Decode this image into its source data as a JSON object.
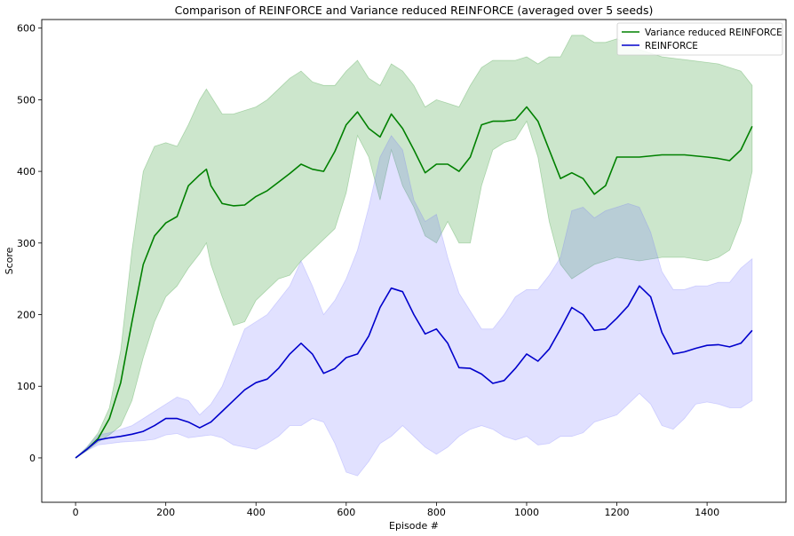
{
  "chart_data": {
    "type": "line",
    "title": "Comparison of REINFORCE and Variance reduced REINFORCE (averaged over 5 seeds)",
    "xlabel": "Episode #",
    "ylabel": "Score",
    "xlim": [
      -75,
      1575
    ],
    "ylim": [
      -62,
      612
    ],
    "xticks": [
      0,
      200,
      400,
      600,
      800,
      1000,
      1200,
      1400
    ],
    "yticks": [
      0,
      100,
      200,
      300,
      400,
      500,
      600
    ],
    "grid": false,
    "legend": "top-right",
    "series": [
      {
        "name": "Variance reduced REINFORCE",
        "color": "#008000",
        "band_color": "#008000",
        "x": [
          0,
          25,
          50,
          75,
          100,
          125,
          150,
          175,
          200,
          225,
          250,
          275,
          290,
          300,
          325,
          350,
          375,
          400,
          425,
          450,
          475,
          500,
          525,
          550,
          575,
          600,
          625,
          650,
          675,
          700,
          725,
          750,
          775,
          800,
          825,
          850,
          875,
          900,
          925,
          950,
          975,
          1000,
          1025,
          1050,
          1075,
          1100,
          1125,
          1150,
          1175,
          1200,
          1250,
          1300,
          1350,
          1400,
          1425,
          1450,
          1475,
          1500
        ],
        "values": [
          0,
          12,
          27,
          55,
          105,
          190,
          270,
          310,
          328,
          337,
          380,
          395,
          403,
          380,
          355,
          352,
          353,
          365,
          373,
          385,
          397,
          410,
          403,
          400,
          428,
          465,
          483,
          460,
          448,
          480,
          460,
          430,
          398,
          410,
          410,
          400,
          420,
          465,
          470,
          470,
          472,
          490,
          470,
          430,
          390,
          398,
          390,
          368,
          380,
          420,
          420,
          423,
          423,
          420,
          418,
          415,
          430,
          463
        ],
        "upper": [
          0,
          15,
          35,
          70,
          150,
          290,
          400,
          435,
          440,
          435,
          465,
          500,
          515,
          505,
          480,
          480,
          485,
          490,
          500,
          515,
          530,
          540,
          525,
          520,
          520,
          540,
          555,
          530,
          520,
          550,
          540,
          520,
          490,
          500,
          495,
          490,
          520,
          545,
          555,
          555,
          555,
          560,
          550,
          560,
          560,
          590,
          590,
          580,
          580,
          585,
          570,
          560,
          556,
          552,
          550,
          545,
          540,
          520
        ],
        "lower": [
          0,
          10,
          22,
          32,
          45,
          80,
          140,
          190,
          225,
          240,
          265,
          285,
          300,
          270,
          225,
          185,
          190,
          220,
          235,
          250,
          255,
          275,
          290,
          305,
          320,
          370,
          450,
          420,
          360,
          430,
          380,
          350,
          310,
          300,
          330,
          300,
          300,
          380,
          430,
          440,
          445,
          470,
          420,
          330,
          270,
          250,
          260,
          270,
          275,
          280,
          275,
          280,
          280,
          275,
          280,
          290,
          330,
          400
        ]
      },
      {
        "name": "REINFORCE",
        "color": "#0000cc",
        "band_color": "#6a6aff",
        "x": [
          0,
          25,
          50,
          75,
          100,
          125,
          150,
          175,
          200,
          225,
          250,
          275,
          300,
          325,
          350,
          375,
          400,
          425,
          450,
          475,
          500,
          525,
          550,
          575,
          600,
          625,
          650,
          675,
          700,
          725,
          750,
          775,
          800,
          825,
          850,
          875,
          900,
          925,
          950,
          975,
          1000,
          1025,
          1050,
          1075,
          1100,
          1125,
          1150,
          1175,
          1200,
          1225,
          1250,
          1275,
          1300,
          1325,
          1350,
          1375,
          1400,
          1425,
          1450,
          1475,
          1500
        ],
        "values": [
          0,
          12,
          25,
          28,
          30,
          33,
          37,
          45,
          55,
          55,
          50,
          42,
          50,
          65,
          80,
          95,
          105,
          110,
          125,
          145,
          160,
          145,
          118,
          125,
          140,
          145,
          170,
          210,
          237,
          232,
          200,
          173,
          180,
          160,
          126,
          125,
          117,
          104,
          108,
          125,
          145,
          135,
          152,
          180,
          210,
          200,
          178,
          180,
          195,
          212,
          240,
          225,
          175,
          145,
          148,
          153,
          157,
          158,
          155,
          160,
          178
        ],
        "upper": [
          0,
          15,
          32,
          35,
          40,
          45,
          55,
          65,
          75,
          85,
          80,
          60,
          75,
          100,
          140,
          180,
          190,
          200,
          220,
          240,
          275,
          240,
          200,
          220,
          250,
          290,
          350,
          420,
          450,
          430,
          360,
          330,
          340,
          280,
          230,
          205,
          180,
          180,
          200,
          225,
          235,
          235,
          255,
          280,
          345,
          350,
          335,
          345,
          350,
          355,
          350,
          315,
          260,
          235,
          235,
          240,
          240,
          245,
          245,
          265,
          278
        ],
        "lower": [
          0,
          10,
          18,
          20,
          22,
          23,
          24,
          26,
          32,
          34,
          28,
          30,
          32,
          28,
          18,
          15,
          12,
          20,
          30,
          45,
          45,
          55,
          50,
          20,
          -20,
          -25,
          -5,
          20,
          30,
          45,
          30,
          15,
          5,
          15,
          30,
          40,
          45,
          40,
          30,
          25,
          30,
          18,
          20,
          30,
          30,
          35,
          50,
          55,
          60,
          75,
          90,
          75,
          45,
          40,
          55,
          75,
          78,
          75,
          70,
          70,
          80
        ]
      }
    ]
  }
}
